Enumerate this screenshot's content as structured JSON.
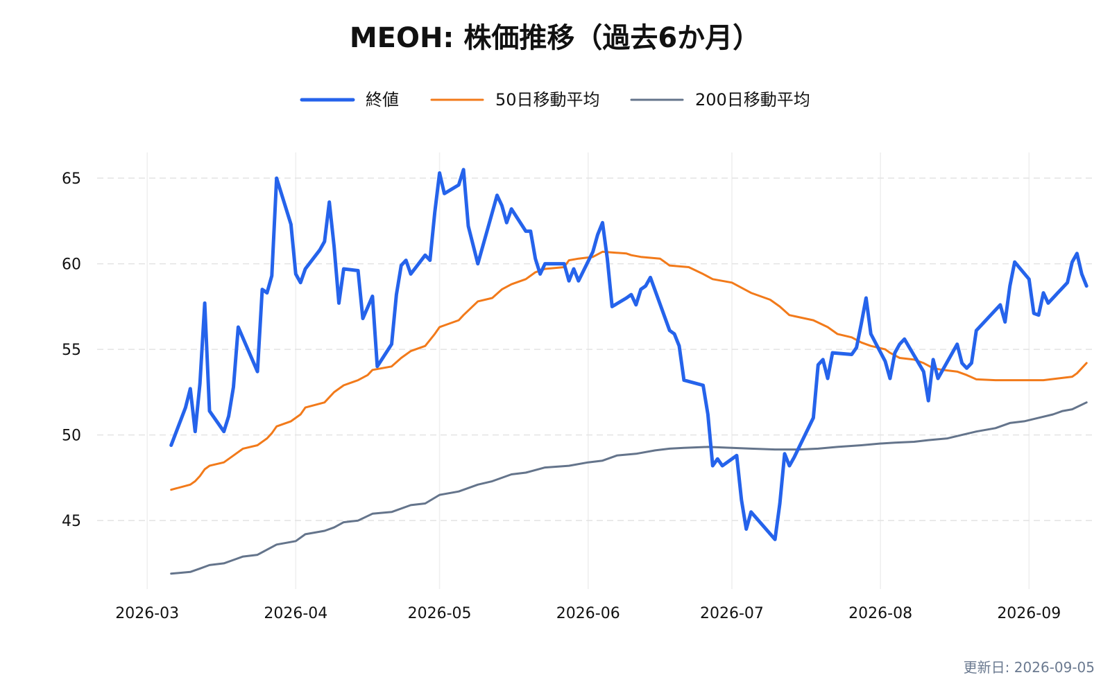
{
  "chart_data": {
    "type": "line",
    "title": "MEOH: 株価推移（過去6か月）",
    "xlabel": "",
    "ylabel": "",
    "x_ticks": [
      "2026-03",
      "2026-04",
      "2026-05",
      "2026-06",
      "2026-07",
      "2026-08",
      "2026-09"
    ],
    "y_ticks": [
      45,
      50,
      55,
      60,
      65
    ],
    "xlim": [
      "2026-02-20",
      "2026-09-12"
    ],
    "ylim": [
      41,
      66.5
    ],
    "grid": "y-dashed",
    "legend_position": "top-center",
    "footer": "更新日: 2026-09-05",
    "series": [
      {
        "name": "終値",
        "color": "#2563eb",
        "points": [
          [
            "2026-03-06",
            49.4
          ],
          [
            "2026-03-09",
            51.6
          ],
          [
            "2026-03-10",
            52.7
          ],
          [
            "2026-03-11",
            50.2
          ],
          [
            "2026-03-12",
            53.0
          ],
          [
            "2026-03-13",
            57.7
          ],
          [
            "2026-03-14",
            51.4
          ],
          [
            "2026-03-17",
            50.2
          ],
          [
            "2026-03-18",
            51.1
          ],
          [
            "2026-03-19",
            52.8
          ],
          [
            "2026-03-20",
            56.3
          ],
          [
            "2026-03-24",
            53.7
          ],
          [
            "2026-03-25",
            58.5
          ],
          [
            "2026-03-26",
            58.3
          ],
          [
            "2026-03-27",
            59.3
          ],
          [
            "2026-03-28",
            65.0
          ],
          [
            "2026-03-31",
            62.3
          ],
          [
            "2026-04-01",
            59.4
          ],
          [
            "2026-04-02",
            58.9
          ],
          [
            "2026-04-03",
            59.7
          ],
          [
            "2026-04-06",
            60.8
          ],
          [
            "2026-04-07",
            61.3
          ],
          [
            "2026-04-08",
            63.6
          ],
          [
            "2026-04-09",
            61.0
          ],
          [
            "2026-04-10",
            57.7
          ],
          [
            "2026-04-11",
            59.7
          ],
          [
            "2026-04-14",
            59.6
          ],
          [
            "2026-04-15",
            56.8
          ],
          [
            "2026-04-17",
            58.1
          ],
          [
            "2026-04-18",
            54.0
          ],
          [
            "2026-04-21",
            55.3
          ],
          [
            "2026-04-22",
            58.2
          ],
          [
            "2026-04-23",
            59.9
          ],
          [
            "2026-04-24",
            60.2
          ],
          [
            "2026-04-25",
            59.4
          ],
          [
            "2026-04-28",
            60.5
          ],
          [
            "2026-04-29",
            60.2
          ],
          [
            "2026-04-30",
            63.0
          ],
          [
            "2026-05-01",
            65.3
          ],
          [
            "2026-05-02",
            64.1
          ],
          [
            "2026-05-05",
            64.6
          ],
          [
            "2026-05-06",
            65.5
          ],
          [
            "2026-05-07",
            62.2
          ],
          [
            "2026-05-09",
            60.0
          ],
          [
            "2026-05-12",
            63.0
          ],
          [
            "2026-05-13",
            64.0
          ],
          [
            "2026-05-14",
            63.4
          ],
          [
            "2026-05-15",
            62.4
          ],
          [
            "2026-05-16",
            63.2
          ],
          [
            "2026-05-19",
            61.9
          ],
          [
            "2026-05-20",
            61.9
          ],
          [
            "2026-05-21",
            60.3
          ],
          [
            "2026-05-22",
            59.4
          ],
          [
            "2026-05-23",
            60.0
          ],
          [
            "2026-05-27",
            60.0
          ],
          [
            "2026-05-28",
            59.0
          ],
          [
            "2026-05-29",
            59.7
          ],
          [
            "2026-05-30",
            59.0
          ],
          [
            "2026-06-02",
            60.7
          ],
          [
            "2026-06-03",
            61.7
          ],
          [
            "2026-06-04",
            62.4
          ],
          [
            "2026-06-05",
            60.3
          ],
          [
            "2026-06-06",
            57.5
          ],
          [
            "2026-06-09",
            58.0
          ],
          [
            "2026-06-10",
            58.2
          ],
          [
            "2026-06-11",
            57.6
          ],
          [
            "2026-06-12",
            58.5
          ],
          [
            "2026-06-13",
            58.7
          ],
          [
            "2026-06-14",
            59.2
          ],
          [
            "2026-06-18",
            56.1
          ],
          [
            "2026-06-19",
            55.9
          ],
          [
            "2026-06-20",
            55.2
          ],
          [
            "2026-06-21",
            53.2
          ],
          [
            "2026-06-25",
            52.9
          ],
          [
            "2026-06-26",
            51.2
          ],
          [
            "2026-06-27",
            48.2
          ],
          [
            "2026-06-28",
            48.6
          ],
          [
            "2026-06-29",
            48.2
          ],
          [
            "2026-07-02",
            48.8
          ],
          [
            "2026-07-03",
            46.2
          ],
          [
            "2026-07-04",
            44.5
          ],
          [
            "2026-07-05",
            45.5
          ],
          [
            "2026-07-10",
            43.9
          ],
          [
            "2026-07-11",
            46.0
          ],
          [
            "2026-07-12",
            48.9
          ],
          [
            "2026-07-13",
            48.2
          ],
          [
            "2026-07-14",
            48.7
          ],
          [
            "2026-07-18",
            51.0
          ],
          [
            "2026-07-19",
            54.1
          ],
          [
            "2026-07-20",
            54.4
          ],
          [
            "2026-07-21",
            53.3
          ],
          [
            "2026-07-22",
            54.8
          ],
          [
            "2026-07-26",
            54.7
          ],
          [
            "2026-07-27",
            55.1
          ],
          [
            "2026-07-28",
            56.5
          ],
          [
            "2026-07-29",
            58.0
          ],
          [
            "2026-07-30",
            55.9
          ],
          [
            "2026-08-02",
            54.3
          ],
          [
            "2026-08-03",
            53.3
          ],
          [
            "2026-08-04",
            54.8
          ],
          [
            "2026-08-05",
            55.3
          ],
          [
            "2026-08-06",
            55.6
          ],
          [
            "2026-08-10",
            53.7
          ],
          [
            "2026-08-11",
            52.0
          ],
          [
            "2026-08-12",
            54.4
          ],
          [
            "2026-08-13",
            53.3
          ],
          [
            "2026-08-17",
            55.3
          ],
          [
            "2026-08-18",
            54.2
          ],
          [
            "2026-08-19",
            53.9
          ],
          [
            "2026-08-20",
            54.2
          ],
          [
            "2026-08-21",
            56.1
          ],
          [
            "2026-08-25",
            57.3
          ],
          [
            "2026-08-26",
            57.6
          ],
          [
            "2026-08-27",
            56.6
          ],
          [
            "2026-08-28",
            58.7
          ],
          [
            "2026-08-29",
            60.1
          ],
          [
            "2026-09-01",
            59.1
          ],
          [
            "2026-09-02",
            57.1
          ],
          [
            "2026-09-03",
            57.0
          ],
          [
            "2026-09-04",
            58.3
          ],
          [
            "2026-09-05",
            57.7
          ],
          [
            "2026-09-09",
            58.9
          ],
          [
            "2026-09-10",
            60.1
          ],
          [
            "2026-09-11",
            60.6
          ],
          [
            "2026-09-12",
            59.4
          ],
          [
            "2026-09-13",
            58.7
          ]
        ]
      },
      {
        "name": "50日移動平均",
        "color": "#f27a1a",
        "points": [
          [
            "2026-03-06",
            46.8
          ],
          [
            "2026-03-10",
            47.1
          ],
          [
            "2026-03-11",
            47.3
          ],
          [
            "2026-03-12",
            47.6
          ],
          [
            "2026-03-13",
            48.0
          ],
          [
            "2026-03-14",
            48.2
          ],
          [
            "2026-03-17",
            48.4
          ],
          [
            "2026-03-19",
            48.8
          ],
          [
            "2026-03-21",
            49.2
          ],
          [
            "2026-03-24",
            49.4
          ],
          [
            "2026-03-26",
            49.8
          ],
          [
            "2026-03-27",
            50.1
          ],
          [
            "2026-03-28",
            50.5
          ],
          [
            "2026-03-31",
            50.8
          ],
          [
            "2026-04-02",
            51.2
          ],
          [
            "2026-04-03",
            51.6
          ],
          [
            "2026-04-07",
            51.9
          ],
          [
            "2026-04-09",
            52.5
          ],
          [
            "2026-04-11",
            52.9
          ],
          [
            "2026-04-14",
            53.2
          ],
          [
            "2026-04-16",
            53.5
          ],
          [
            "2026-04-17",
            53.8
          ],
          [
            "2026-04-21",
            54.0
          ],
          [
            "2026-04-23",
            54.5
          ],
          [
            "2026-04-25",
            54.9
          ],
          [
            "2026-04-28",
            55.2
          ],
          [
            "2026-04-30",
            55.9
          ],
          [
            "2026-05-01",
            56.3
          ],
          [
            "2026-05-02",
            56.4
          ],
          [
            "2026-05-05",
            56.7
          ],
          [
            "2026-05-06",
            57.0
          ],
          [
            "2026-05-09",
            57.8
          ],
          [
            "2026-05-12",
            58.0
          ],
          [
            "2026-05-14",
            58.5
          ],
          [
            "2026-05-16",
            58.8
          ],
          [
            "2026-05-19",
            59.1
          ],
          [
            "2026-05-21",
            59.5
          ],
          [
            "2026-05-23",
            59.7
          ],
          [
            "2026-05-27",
            59.8
          ],
          [
            "2026-05-28",
            60.2
          ],
          [
            "2026-05-30",
            60.3
          ],
          [
            "2026-06-02",
            60.4
          ],
          [
            "2026-06-04",
            60.7
          ],
          [
            "2026-06-09",
            60.6
          ],
          [
            "2026-06-10",
            60.5
          ],
          [
            "2026-06-12",
            60.4
          ],
          [
            "2026-06-16",
            60.3
          ],
          [
            "2026-06-17",
            60.1
          ],
          [
            "2026-06-18",
            59.9
          ],
          [
            "2026-06-22",
            59.8
          ],
          [
            "2026-06-25",
            59.4
          ],
          [
            "2026-06-27",
            59.1
          ],
          [
            "2026-07-01",
            58.9
          ],
          [
            "2026-07-03",
            58.6
          ],
          [
            "2026-07-05",
            58.3
          ],
          [
            "2026-07-09",
            57.9
          ],
          [
            "2026-07-11",
            57.5
          ],
          [
            "2026-07-13",
            57.0
          ],
          [
            "2026-07-18",
            56.7
          ],
          [
            "2026-07-21",
            56.3
          ],
          [
            "2026-07-23",
            55.9
          ],
          [
            "2026-07-26",
            55.7
          ],
          [
            "2026-07-28",
            55.4
          ],
          [
            "2026-07-30",
            55.2
          ],
          [
            "2026-08-02",
            55.0
          ],
          [
            "2026-08-03",
            54.8
          ],
          [
            "2026-08-05",
            54.5
          ],
          [
            "2026-08-08",
            54.4
          ],
          [
            "2026-08-10",
            54.2
          ],
          [
            "2026-08-12",
            53.9
          ],
          [
            "2026-08-14",
            53.8
          ],
          [
            "2026-08-17",
            53.7
          ],
          [
            "2026-08-19",
            53.5
          ],
          [
            "2026-08-21",
            53.25
          ],
          [
            "2026-08-25",
            53.2
          ],
          [
            "2026-08-29",
            53.2
          ],
          [
            "2026-09-01",
            53.2
          ],
          [
            "2026-09-04",
            53.2
          ],
          [
            "2026-09-07",
            53.3
          ],
          [
            "2026-09-10",
            53.4
          ],
          [
            "2026-09-11",
            53.6
          ],
          [
            "2026-09-12",
            53.9
          ],
          [
            "2026-09-13",
            54.2
          ]
        ]
      },
      {
        "name": "200日移動平均",
        "color": "#64748b",
        "points": [
          [
            "2026-03-06",
            41.9
          ],
          [
            "2026-03-10",
            42.0
          ],
          [
            "2026-03-12",
            42.2
          ],
          [
            "2026-03-14",
            42.4
          ],
          [
            "2026-03-17",
            42.5
          ],
          [
            "2026-03-19",
            42.7
          ],
          [
            "2026-03-21",
            42.9
          ],
          [
            "2026-03-24",
            43.0
          ],
          [
            "2026-03-26",
            43.3
          ],
          [
            "2026-03-28",
            43.6
          ],
          [
            "2026-04-01",
            43.8
          ],
          [
            "2026-04-03",
            44.2
          ],
          [
            "2026-04-07",
            44.4
          ],
          [
            "2026-04-09",
            44.6
          ],
          [
            "2026-04-11",
            44.9
          ],
          [
            "2026-04-14",
            45.0
          ],
          [
            "2026-04-17",
            45.4
          ],
          [
            "2026-04-21",
            45.5
          ],
          [
            "2026-04-25",
            45.9
          ],
          [
            "2026-04-28",
            46.0
          ],
          [
            "2026-05-01",
            46.5
          ],
          [
            "2026-05-05",
            46.7
          ],
          [
            "2026-05-09",
            47.1
          ],
          [
            "2026-05-12",
            47.3
          ],
          [
            "2026-05-16",
            47.7
          ],
          [
            "2026-05-19",
            47.8
          ],
          [
            "2026-05-23",
            48.1
          ],
          [
            "2026-05-28",
            48.2
          ],
          [
            "2026-06-01",
            48.4
          ],
          [
            "2026-06-04",
            48.5
          ],
          [
            "2026-06-07",
            48.8
          ],
          [
            "2026-06-11",
            48.9
          ],
          [
            "2026-06-15",
            49.1
          ],
          [
            "2026-06-18",
            49.2
          ],
          [
            "2026-06-21",
            49.25
          ],
          [
            "2026-06-26",
            49.3
          ],
          [
            "2026-07-01",
            49.25
          ],
          [
            "2026-07-05",
            49.2
          ],
          [
            "2026-07-10",
            49.15
          ],
          [
            "2026-07-15",
            49.15
          ],
          [
            "2026-07-19",
            49.2
          ],
          [
            "2026-07-23",
            49.3
          ],
          [
            "2026-07-28",
            49.4
          ],
          [
            "2026-08-01",
            49.5
          ],
          [
            "2026-08-04",
            49.55
          ],
          [
            "2026-08-08",
            49.6
          ],
          [
            "2026-08-11",
            49.7
          ],
          [
            "2026-08-15",
            49.8
          ],
          [
            "2026-08-18",
            50.0
          ],
          [
            "2026-08-21",
            50.2
          ],
          [
            "2026-08-25",
            50.4
          ],
          [
            "2026-08-28",
            50.7
          ],
          [
            "2026-08-31",
            50.8
          ],
          [
            "2026-09-03",
            51.0
          ],
          [
            "2026-09-06",
            51.2
          ],
          [
            "2026-09-08",
            51.4
          ],
          [
            "2026-09-10",
            51.5
          ],
          [
            "2026-09-13",
            51.9
          ]
        ]
      }
    ]
  }
}
